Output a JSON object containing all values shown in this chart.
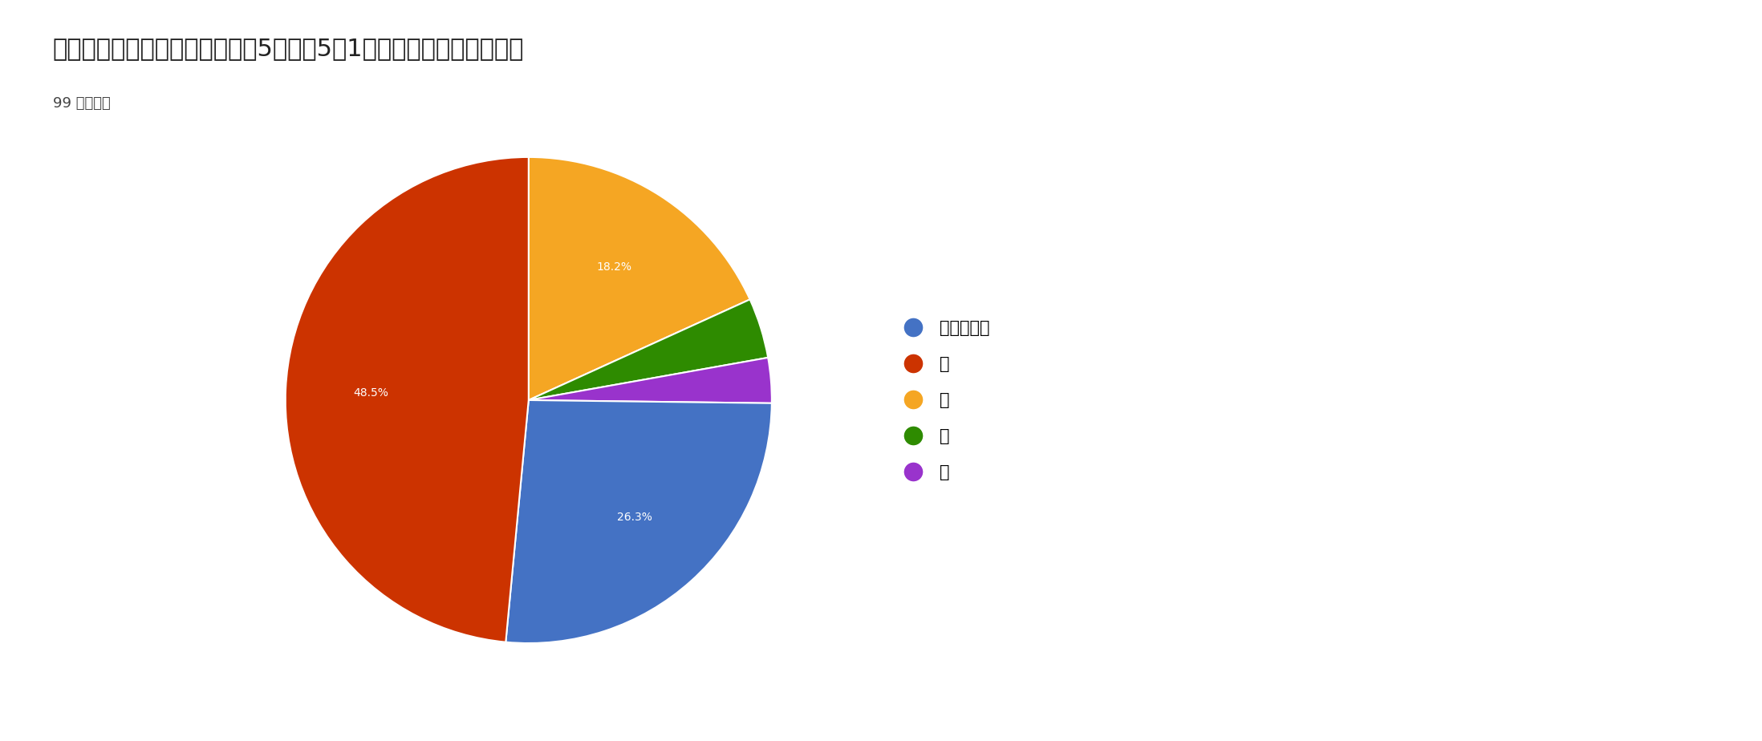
{
  "title": "１．この催しについて、最良を5として5〜1の数字を選んでください",
  "subtitle": "99 件の回答",
  "legend_labels": [
    "５（最良）",
    "４",
    "３",
    "２",
    "１"
  ],
  "legend_colors": [
    "#4472C4",
    "#CC3300",
    "#F5A623",
    "#2E8B00",
    "#9933CC"
  ],
  "wedge_order_labels": [
    "３",
    "２",
    "１",
    "５（最良）",
    "４"
  ],
  "wedge_order_sizes": [
    18.2,
    4.0,
    3.0,
    26.3,
    48.5
  ],
  "wedge_order_colors": [
    "#F5A623",
    "#2E8B00",
    "#9933CC",
    "#4472C4",
    "#CC3300"
  ],
  "wedge_order_pct": [
    "18.2%",
    "",
    "",
    "26.3%",
    "48.5%"
  ],
  "background_color": "#ffffff",
  "title_fontsize": 22,
  "subtitle_fontsize": 13,
  "legend_fontsize": 15,
  "pct_fontsize": 15,
  "startangle": 90
}
